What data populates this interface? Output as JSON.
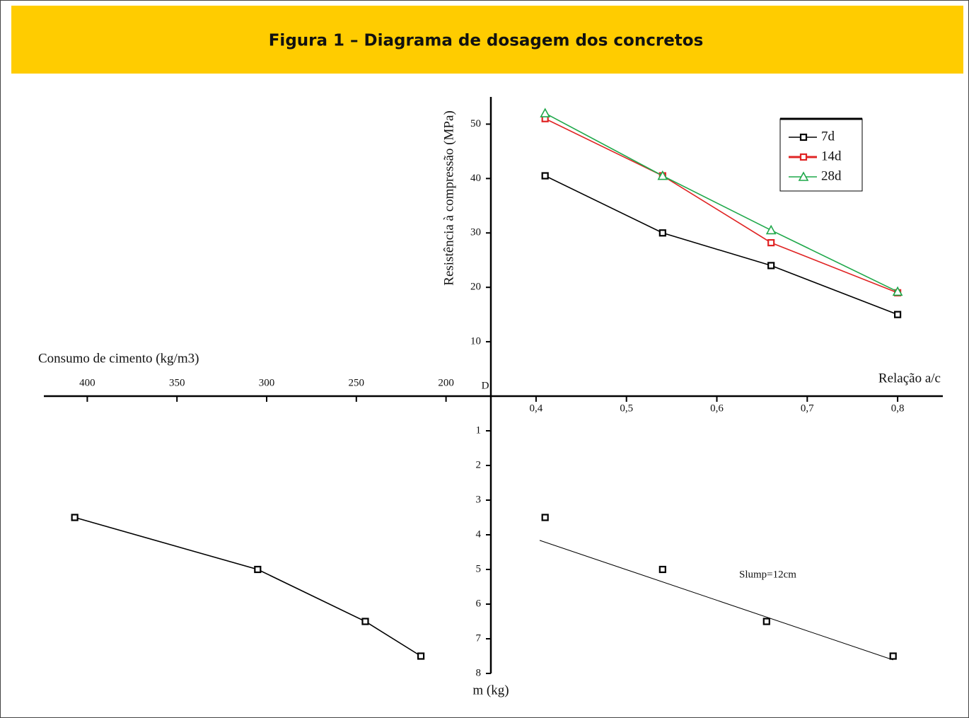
{
  "header": {
    "title": "Figura 1 – Diagrama de dosagem dos concretos"
  },
  "chart_data": [
    {
      "type": "line",
      "xlabel": "Relação a/c",
      "ylabel": "Resistência à compressão (MPa)",
      "x": [
        0.41,
        0.54,
        0.66,
        0.8
      ],
      "xlim": [
        0.35,
        0.85
      ],
      "xticks": [
        {
          "value": 0.4,
          "label": "0,4"
        },
        {
          "value": 0.5,
          "label": "0,5"
        },
        {
          "value": 0.6,
          "label": "0,6"
        },
        {
          "value": 0.7,
          "label": "0,7"
        },
        {
          "value": 0.8,
          "label": "0,8"
        }
      ],
      "ylim": [
        0,
        55
      ],
      "yticks": [
        10,
        20,
        30,
        40,
        50
      ],
      "legend": "upper right",
      "series": [
        {
          "name": "7d",
          "color": "#000000",
          "marker": "square",
          "values": [
            40.5,
            30,
            24,
            15
          ]
        },
        {
          "name": "14d",
          "color": "#e02424",
          "marker": "square",
          "values": [
            51,
            40.5,
            28.2,
            19
          ]
        },
        {
          "name": "28d",
          "color": "#1fa84a",
          "marker": "triangle",
          "values": [
            52,
            40.5,
            30.5,
            19.2
          ]
        }
      ]
    },
    {
      "type": "line",
      "xlabel": "Consumo de cimento (kg/m3)",
      "ylabel": "m (kg)",
      "annotation": "D",
      "x": [
        407,
        305,
        245,
        214
      ],
      "xlim": [
        425,
        175
      ],
      "xticks": [
        400,
        350,
        300,
        250,
        200
      ],
      "ylim": [
        0,
        8
      ],
      "yticks": [
        1,
        2,
        3,
        4,
        5,
        6,
        7,
        8
      ],
      "series": [
        {
          "color": "#000000",
          "marker": "square",
          "values": [
            3.5,
            5,
            6.5,
            7.5
          ]
        }
      ]
    },
    {
      "type": "scatter",
      "annotation": "Slump=12cm",
      "x": [
        0.41,
        0.54,
        0.655,
        0.795
      ],
      "xlim": [
        0.35,
        0.85
      ],
      "ylim": [
        0,
        8
      ],
      "color": "#000000",
      "marker": "square",
      "values": [
        3.5,
        5,
        6.5,
        7.5
      ],
      "fit_line": {
        "x": [
          0.404,
          0.795
        ],
        "y": [
          4.16,
          7.61
        ]
      }
    }
  ]
}
